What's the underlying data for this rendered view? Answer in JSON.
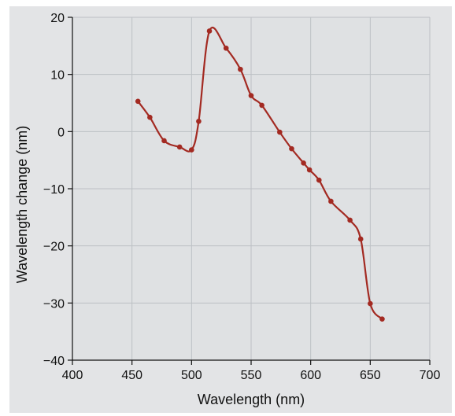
{
  "chart_data": {
    "type": "line",
    "title": "",
    "xlabel": "Wavelength (nm)",
    "ylabel": "Wavelength change (nm)",
    "xlim": [
      400,
      700
    ],
    "ylim": [
      -40,
      20
    ],
    "xticks": [
      400,
      450,
      500,
      550,
      600,
      650,
      700
    ],
    "yticks": [
      -40,
      -30,
      -20,
      -10,
      0,
      10,
      20
    ],
    "ytick_labels": [
      "−40",
      "−30",
      "−20",
      "−10",
      "0",
      "10",
      "20"
    ],
    "grid": true,
    "series": [
      {
        "color": "#a32a22",
        "marker": "circle",
        "x": [
          455,
          465,
          477,
          490,
          500,
          506,
          515,
          529,
          541,
          550,
          559,
          574,
          584,
          594,
          599,
          607,
          617,
          633,
          642,
          650,
          660
        ],
        "y": [
          5.3,
          2.5,
          -1.6,
          -2.7,
          -3.2,
          1.8,
          17.6,
          14.6,
          10.9,
          6.3,
          4.6,
          -0.1,
          -3.0,
          -5.5,
          -6.7,
          -8.5,
          -12.2,
          -15.5,
          -18.8,
          -30.1,
          -32.8
        ]
      }
    ],
    "colors": {
      "plot_background": "#dfe1e3",
      "frame_background": "#e3e4e6",
      "grid": "#bcc0c4",
      "axis": "#111111"
    }
  }
}
